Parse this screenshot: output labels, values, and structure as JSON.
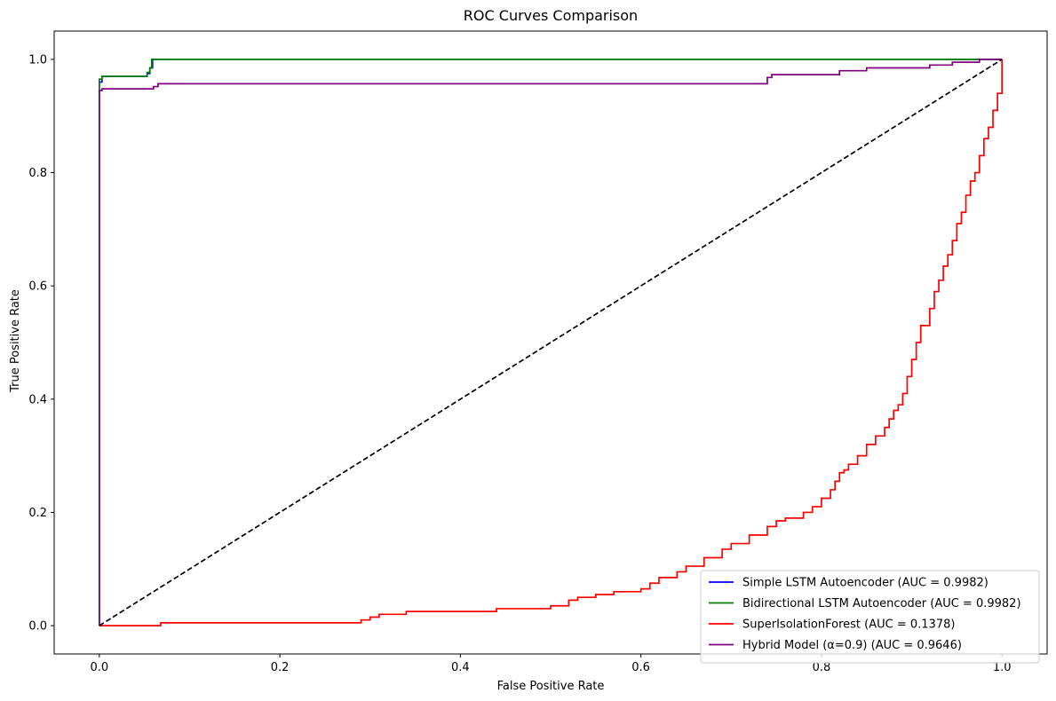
{
  "chart_data": {
    "type": "line",
    "title": "ROC Curves Comparison",
    "xlabel": "False Positive Rate",
    "ylabel": "True Positive Rate",
    "xlim": [
      -0.05,
      1.05
    ],
    "ylim": [
      -0.05,
      1.05
    ],
    "xticks": [
      0.0,
      0.2,
      0.4,
      0.6,
      0.8,
      1.0
    ],
    "yticks": [
      0.0,
      0.2,
      0.4,
      0.6,
      0.8,
      1.0
    ],
    "xtick_labels": [
      "0.0",
      "0.2",
      "0.4",
      "0.6",
      "0.8",
      "1.0"
    ],
    "ytick_labels": [
      "0.0",
      "0.2",
      "0.4",
      "0.6",
      "0.8",
      "1.0"
    ],
    "grid": false,
    "legend_position": "lower-right",
    "series": [
      {
        "name": "Simple LSTM Autoencoder (AUC = 0.9982)",
        "color": "#0000ff",
        "dash": "solid",
        "x": [
          0,
          0,
          0.003,
          0.003,
          0.053,
          0.053,
          0.056,
          0.056,
          0.059,
          0.059,
          1.0
        ],
        "y": [
          0,
          0.96,
          0.96,
          0.97,
          0.97,
          0.975,
          0.975,
          0.985,
          0.985,
          1.0,
          1.0
        ]
      },
      {
        "name": "Bidirectional LSTM Autoencoder (AUC = 0.9982)",
        "color": "#008000",
        "dash": "solid",
        "x": [
          0,
          0,
          0.003,
          0.003,
          0.053,
          0.053,
          0.056,
          0.056,
          0.058,
          0.058,
          1.0
        ],
        "y": [
          0,
          0.965,
          0.965,
          0.97,
          0.97,
          0.977,
          0.977,
          0.985,
          0.985,
          1.0,
          1.0
        ]
      },
      {
        "name": "SuperIsolationForest (AUC = 0.1378)",
        "color": "#ff0000",
        "dash": "solid",
        "x": [
          0,
          0.068,
          0.068,
          0.29,
          0.29,
          0.3,
          0.3,
          0.31,
          0.31,
          0.34,
          0.34,
          0.44,
          0.44,
          0.5,
          0.5,
          0.52,
          0.52,
          0.53,
          0.53,
          0.55,
          0.55,
          0.57,
          0.57,
          0.6,
          0.6,
          0.61,
          0.61,
          0.62,
          0.62,
          0.64,
          0.64,
          0.65,
          0.65,
          0.67,
          0.67,
          0.69,
          0.69,
          0.7,
          0.7,
          0.72,
          0.72,
          0.74,
          0.74,
          0.75,
          0.75,
          0.76,
          0.76,
          0.78,
          0.78,
          0.79,
          0.79,
          0.8,
          0.8,
          0.81,
          0.81,
          0.815,
          0.815,
          0.82,
          0.82,
          0.825,
          0.825,
          0.83,
          0.83,
          0.84,
          0.84,
          0.85,
          0.85,
          0.86,
          0.86,
          0.87,
          0.87,
          0.875,
          0.875,
          0.88,
          0.88,
          0.885,
          0.885,
          0.89,
          0.89,
          0.895,
          0.895,
          0.9,
          0.9,
          0.905,
          0.905,
          0.91,
          0.91,
          0.92,
          0.92,
          0.925,
          0.925,
          0.93,
          0.93,
          0.935,
          0.935,
          0.94,
          0.94,
          0.945,
          0.945,
          0.95,
          0.95,
          0.955,
          0.955,
          0.96,
          0.96,
          0.965,
          0.965,
          0.97,
          0.97,
          0.975,
          0.975,
          0.98,
          0.98,
          0.985,
          0.985,
          0.99,
          0.99,
          0.995,
          0.995,
          1.0,
          1.0
        ],
        "y": [
          0,
          0,
          0.005,
          0.005,
          0.01,
          0.01,
          0.015,
          0.015,
          0.02,
          0.02,
          0.025,
          0.025,
          0.03,
          0.03,
          0.035,
          0.035,
          0.045,
          0.045,
          0.05,
          0.05,
          0.055,
          0.055,
          0.06,
          0.06,
          0.065,
          0.065,
          0.075,
          0.075,
          0.085,
          0.085,
          0.095,
          0.095,
          0.105,
          0.105,
          0.12,
          0.12,
          0.135,
          0.135,
          0.145,
          0.145,
          0.16,
          0.16,
          0.175,
          0.175,
          0.185,
          0.185,
          0.19,
          0.19,
          0.2,
          0.2,
          0.21,
          0.21,
          0.225,
          0.225,
          0.24,
          0.24,
          0.255,
          0.255,
          0.27,
          0.27,
          0.275,
          0.275,
          0.285,
          0.285,
          0.3,
          0.3,
          0.32,
          0.32,
          0.335,
          0.335,
          0.35,
          0.35,
          0.365,
          0.365,
          0.38,
          0.38,
          0.39,
          0.39,
          0.41,
          0.41,
          0.44,
          0.44,
          0.47,
          0.47,
          0.5,
          0.5,
          0.53,
          0.53,
          0.56,
          0.56,
          0.59,
          0.59,
          0.61,
          0.61,
          0.635,
          0.635,
          0.655,
          0.655,
          0.68,
          0.68,
          0.71,
          0.71,
          0.73,
          0.73,
          0.76,
          0.76,
          0.785,
          0.785,
          0.8,
          0.8,
          0.83,
          0.83,
          0.86,
          0.86,
          0.88,
          0.88,
          0.91,
          0.91,
          0.94,
          0.94,
          1.0
        ]
      },
      {
        "name": "Hybrid Model (α=0.9) (AUC = 0.9646)",
        "color": "#800080",
        "dash": "solid",
        "x": [
          0,
          0,
          0.003,
          0.003,
          0.06,
          0.06,
          0.065,
          0.065,
          0.74,
          0.74,
          0.745,
          0.745,
          0.82,
          0.82,
          0.85,
          0.85,
          0.92,
          0.92,
          0.945,
          0.945,
          0.975,
          0.975,
          1.0
        ],
        "y": [
          0,
          0.945,
          0.945,
          0.948,
          0.948,
          0.952,
          0.952,
          0.957,
          0.957,
          0.968,
          0.968,
          0.973,
          0.973,
          0.98,
          0.98,
          0.985,
          0.985,
          0.99,
          0.99,
          0.995,
          0.995,
          1.0,
          1.0
        ]
      },
      {
        "name": "",
        "color": "#000000",
        "dash": "dashed",
        "x": [
          0,
          1
        ],
        "y": [
          0,
          1
        ]
      }
    ]
  }
}
